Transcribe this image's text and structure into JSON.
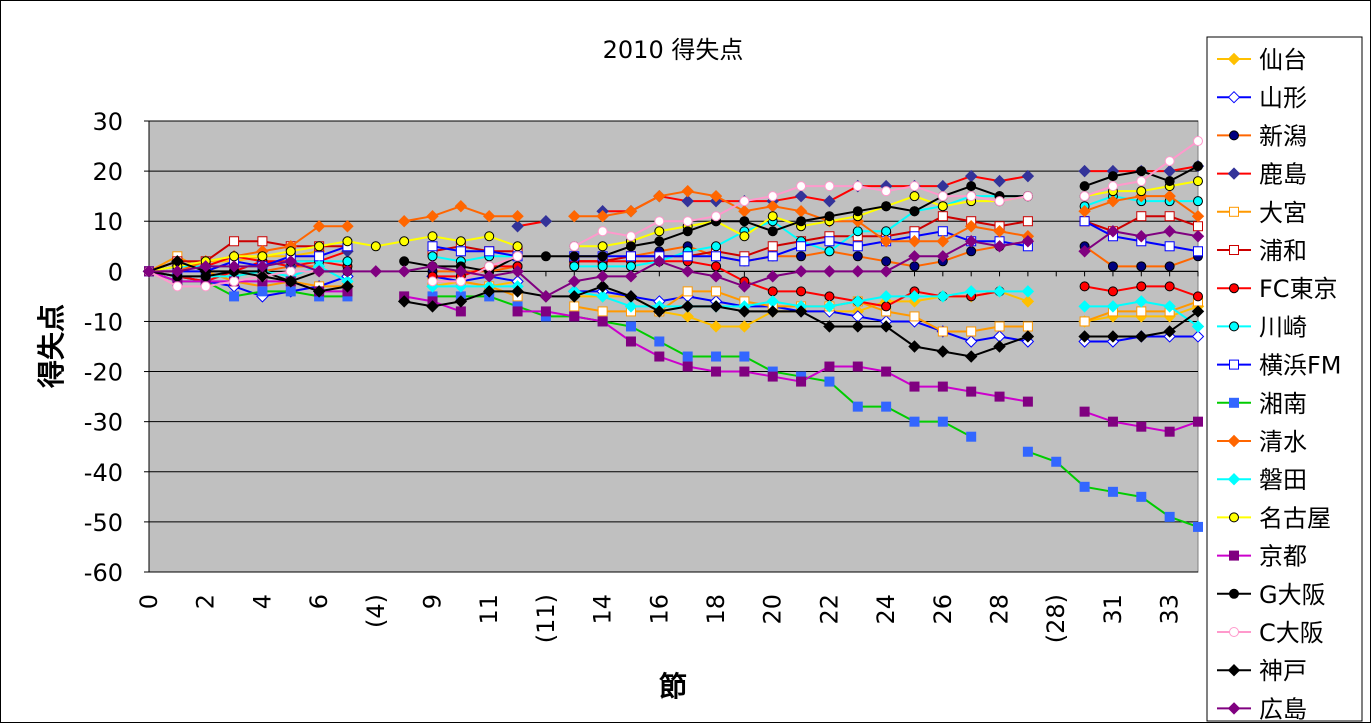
{
  "chart_data": {
    "type": "line",
    "title": "2010 得失点",
    "xlabel": "節",
    "ylabel": "得失点",
    "ylim": [
      -60,
      30
    ],
    "yticks": [
      30,
      20,
      10,
      0,
      -10,
      -20,
      -30,
      -40,
      -50,
      -60
    ],
    "grid": "horizontal",
    "legend_position": "right",
    "categories": [
      "0",
      "1",
      "2",
      "3",
      "4",
      "5",
      "6",
      "7",
      "(4)",
      "8",
      "9",
      "10",
      "11",
      "12",
      "(11)",
      "13",
      "14",
      "15",
      "16",
      "17",
      "18",
      "19",
      "20",
      "21",
      "22",
      "23",
      "24",
      "25",
      "26",
      "27",
      "28",
      "29",
      "(28)",
      "30",
      "31",
      "32",
      "33",
      "34"
    ],
    "x_tick_labels": [
      "0",
      "",
      "2",
      "",
      "4",
      "",
      "6",
      "",
      "(4)",
      "",
      "9",
      "",
      "11",
      "",
      "(11)",
      "",
      "14",
      "",
      "16",
      "",
      "18",
      "",
      "20",
      "",
      "22",
      "",
      "24",
      "",
      "26",
      "",
      "28",
      "",
      "(28)",
      "",
      "31",
      "",
      "33",
      ""
    ],
    "series": [
      {
        "name": "仙台",
        "color": "#FFC000",
        "marker": "diamond",
        "fill": "#FFC000",
        "values": [
          0,
          1,
          2,
          2,
          3,
          3,
          4,
          null,
          null,
          null,
          -3,
          -2,
          -3,
          -2,
          null,
          -5,
          -5,
          -5,
          -8,
          -9,
          -11,
          -11,
          -8,
          -8,
          -8,
          -8,
          -6,
          -6,
          -5,
          -5,
          -4,
          -6,
          null,
          -10,
          -9,
          -9,
          -9,
          -7
        ]
      },
      {
        "name": "山形",
        "color": "#0000FF",
        "marker": "diamond",
        "fill": "#FFFFFF",
        "values": [
          0,
          -1,
          -2,
          -3,
          -5,
          -4,
          -3,
          -1,
          null,
          null,
          -1,
          -2,
          -1,
          -2,
          null,
          -4,
          -4,
          -5,
          -6,
          -5,
          -6,
          -7,
          -7,
          -8,
          -8,
          -9,
          -10,
          -10,
          -12,
          -14,
          -13,
          -14,
          null,
          -14,
          -14,
          -13,
          -13,
          -13
        ]
      },
      {
        "name": "新潟",
        "color": "#FF6600",
        "marker": "circle",
        "fill": "#000080",
        "values": [
          0,
          -1,
          -1,
          -1,
          0,
          1,
          1,
          null,
          null,
          null,
          0,
          0,
          0,
          1,
          null,
          2,
          2,
          3,
          4,
          5,
          3,
          2,
          3,
          3,
          4,
          3,
          2,
          1,
          2,
          4,
          5,
          6,
          null,
          5,
          1,
          1,
          1,
          3
        ]
      },
      {
        "name": "鹿島",
        "color": "#FF0000",
        "marker": "diamond",
        "fill": "#333399",
        "values": [
          0,
          1,
          1,
          3,
          2,
          1,
          2,
          4,
          null,
          null,
          null,
          null,
          null,
          9,
          10,
          null,
          12,
          12,
          15,
          14,
          14,
          14,
          14,
          15,
          14,
          17,
          17,
          17,
          17,
          19,
          18,
          19,
          null,
          20,
          20,
          20,
          20,
          21
        ]
      },
      {
        "name": "大宮",
        "color": "#FF9900",
        "marker": "square",
        "fill": "#FFFFFF",
        "values": [
          0,
          3,
          0,
          -2,
          -3,
          -2,
          -3,
          -3,
          null,
          null,
          -2,
          -2,
          -3,
          -5,
          null,
          -7,
          -8,
          -8,
          -8,
          -4,
          -4,
          -6,
          -7,
          -7,
          -7,
          -6,
          -8,
          -9,
          -12,
          -12,
          -11,
          -11,
          null,
          -10,
          -8,
          -8,
          -8,
          -6
        ]
      },
      {
        "name": "浦和",
        "color": "#CC0000",
        "marker": "square",
        "fill": "#FFFFFF",
        "values": [
          0,
          2,
          2,
          6,
          6,
          5,
          5,
          5,
          null,
          null,
          4,
          5,
          4,
          4,
          null,
          2,
          2,
          3,
          3,
          3,
          4,
          3,
          5,
          6,
          7,
          7,
          7,
          8,
          11,
          10,
          9,
          10,
          null,
          10,
          8,
          11,
          11,
          9
        ]
      },
      {
        "name": "FC東京",
        "color": "#FF0000",
        "marker": "circle",
        "fill": "#FF0000",
        "values": [
          0,
          -1,
          -2,
          0,
          2,
          2,
          2,
          1,
          null,
          null,
          -1,
          -1,
          1,
          1,
          null,
          2,
          2,
          2,
          2,
          2,
          1,
          -2,
          -4,
          -4,
          -5,
          -6,
          -7,
          -4,
          -5,
          -5,
          -4,
          null,
          null,
          -3,
          -4,
          -3,
          -3,
          -5
        ]
      },
      {
        "name": "川崎",
        "color": "#00FFFF",
        "marker": "circle",
        "fill": "#00FFFF",
        "values": [
          0,
          1,
          1,
          1,
          1,
          2,
          2,
          2,
          null,
          null,
          3,
          2,
          3,
          3,
          null,
          1,
          1,
          1,
          2,
          4,
          5,
          8,
          10,
          6,
          4,
          8,
          8,
          12,
          13,
          15,
          15,
          15,
          null,
          13,
          15,
          14,
          14,
          14
        ]
      },
      {
        "name": "横浜FM",
        "color": "#0000FF",
        "marker": "square",
        "fill": "#FFFFFF",
        "values": [
          0,
          0,
          0,
          2,
          1,
          3,
          3,
          5,
          null,
          null,
          5,
          4,
          4,
          3,
          null,
          3,
          3,
          3,
          3,
          3,
          3,
          2,
          3,
          5,
          6,
          5,
          6,
          7,
          8,
          6,
          6,
          5,
          null,
          10,
          7,
          6,
          5,
          4
        ]
      },
      {
        "name": "湘南",
        "color": "#00CC00",
        "marker": "square",
        "fill": "#3366FF",
        "values": [
          0,
          -2,
          -2,
          -5,
          -4,
          -4,
          -5,
          -5,
          null,
          null,
          -5,
          -5,
          -5,
          -7,
          -9,
          -9,
          -10,
          -11,
          -14,
          -17,
          -17,
          -17,
          -20,
          -21,
          -22,
          -27,
          -27,
          -30,
          -30,
          -33,
          null,
          -36,
          -38,
          -43,
          -44,
          -45,
          -49,
          -51
        ]
      },
      {
        "name": "清水",
        "color": "#FF6600",
        "marker": "diamond",
        "fill": "#FF6600",
        "values": [
          0,
          0,
          2,
          3,
          4,
          5,
          9,
          9,
          null,
          10,
          11,
          13,
          11,
          11,
          null,
          11,
          11,
          12,
          15,
          16,
          15,
          12,
          13,
          12,
          10,
          10,
          6,
          6,
          6,
          9,
          8,
          7,
          null,
          12,
          14,
          15,
          15,
          11
        ]
      },
      {
        "name": "磐田",
        "color": "#00FFFF",
        "marker": "diamond",
        "fill": "#00FFFF",
        "values": [
          0,
          -1,
          -1,
          -1,
          0,
          -1,
          1,
          -2,
          null,
          null,
          -3,
          -3,
          -3,
          -3,
          null,
          -4,
          -5,
          -7,
          -7,
          -7,
          -7,
          -7,
          -6,
          -7,
          -7,
          -6,
          -5,
          -5,
          -5,
          -4,
          -4,
          -4,
          null,
          -7,
          -7,
          -6,
          -7,
          -11
        ]
      },
      {
        "name": "名古屋",
        "color": "#FFFF00",
        "marker": "circle",
        "fill": "#FFFF00",
        "values": [
          0,
          1,
          2,
          3,
          3,
          4,
          5,
          6,
          5,
          6,
          7,
          6,
          7,
          5,
          null,
          5,
          5,
          6,
          8,
          9,
          10,
          7,
          11,
          9,
          10,
          11,
          13,
          15,
          13,
          14,
          14,
          15,
          null,
          15,
          16,
          16,
          17,
          18
        ]
      },
      {
        "name": "京都",
        "color": "#CC00CC",
        "marker": "square",
        "fill": "#800080",
        "values": [
          0,
          -2,
          -2,
          -2,
          -2,
          -2,
          -4,
          -4,
          null,
          -5,
          -6,
          -8,
          null,
          -8,
          -8,
          -9,
          -10,
          -14,
          -17,
          -19,
          -20,
          -20,
          -21,
          -22,
          -19,
          -19,
          -20,
          -23,
          -23,
          -24,
          -25,
          -26,
          null,
          -28,
          -30,
          -31,
          -32,
          -30
        ]
      },
      {
        "name": "G大阪",
        "color": "#000000",
        "marker": "circle",
        "fill": "#000000",
        "values": [
          0,
          -1,
          -1,
          0,
          0,
          -2,
          0,
          0,
          null,
          2,
          1,
          1,
          0,
          3,
          3,
          3,
          3,
          5,
          6,
          8,
          10,
          10,
          8,
          10,
          11,
          12,
          13,
          12,
          15,
          17,
          15,
          15,
          null,
          17,
          19,
          20,
          18,
          21
        ]
      },
      {
        "name": "C大阪",
        "color": "#FF99CC",
        "marker": "circle",
        "fill": "#FFFFFF",
        "values": [
          0,
          -3,
          -3,
          -2,
          -1,
          0,
          0,
          null,
          null,
          null,
          -2,
          -2,
          1,
          3,
          null,
          5,
          8,
          7,
          10,
          10,
          11,
          14,
          15,
          17,
          17,
          17,
          16,
          17,
          15,
          15,
          14,
          15,
          null,
          15,
          17,
          18,
          22,
          26
        ]
      },
      {
        "name": "神戸",
        "color": "#000000",
        "marker": "diamond",
        "fill": "#000000",
        "values": [
          0,
          2,
          0,
          0,
          -1,
          -2,
          -4,
          -3,
          null,
          -6,
          -7,
          -6,
          -4,
          -4,
          -5,
          -5,
          -3,
          -5,
          -8,
          -7,
          -7,
          -8,
          -8,
          -8,
          -11,
          -11,
          -11,
          -15,
          -16,
          -17,
          -15,
          -13,
          null,
          -13,
          -13,
          -13,
          -12,
          -8
        ]
      },
      {
        "name": "広島",
        "color": "#800080",
        "marker": "diamond",
        "fill": "#800080",
        "values": [
          0,
          0,
          1,
          1,
          1,
          2,
          0,
          0,
          0,
          0,
          1,
          0,
          -1,
          0,
          -5,
          -2,
          -1,
          -1,
          2,
          0,
          -1,
          -3,
          -1,
          0,
          0,
          0,
          0,
          3,
          3,
          6,
          5,
          6,
          null,
          4,
          8,
          7,
          8,
          7
        ]
      }
    ]
  }
}
